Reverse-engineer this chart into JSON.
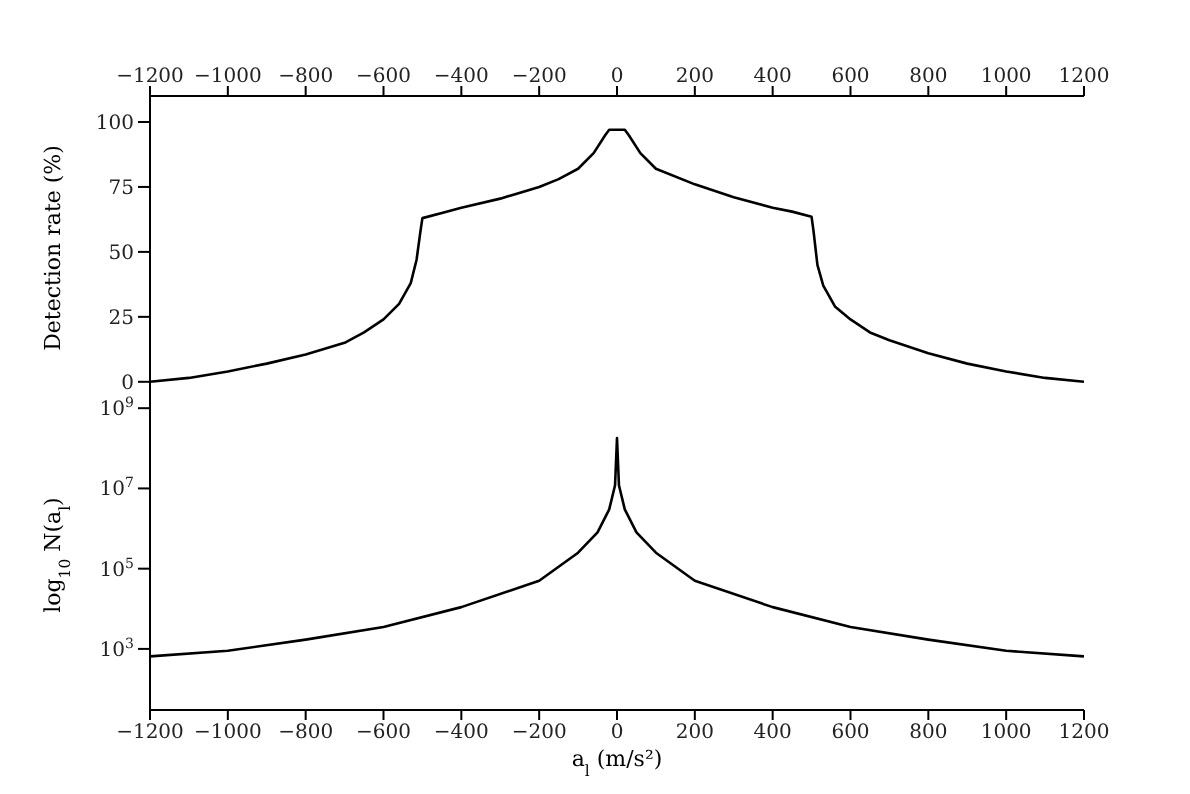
{
  "chart_data": [
    {
      "type": "line",
      "ylabel": "Detection rate (%)",
      "tick_labels": "y",
      "xlim": [
        -1200,
        1200
      ],
      "xticks": [
        -1200,
        -1000,
        -800,
        -600,
        -400,
        -200,
        0,
        200,
        400,
        600,
        800,
        1000,
        1200
      ],
      "x2lim": [
        -1200,
        1200
      ],
      "x2ticks": [
        -1200,
        -1000,
        -800,
        -600,
        -400,
        -200,
        0,
        200,
        400,
        600,
        800,
        1000,
        1200
      ],
      "ylim": [
        -7,
        110
      ],
      "yticks": [
        0,
        25,
        50,
        75,
        100
      ],
      "marker": "none",
      "line_style": "solid",
      "x": [
        -1200,
        -1100,
        -1000,
        -900,
        -800,
        -700,
        -650,
        -600,
        -560,
        -530,
        -515,
        -505,
        -500,
        -450,
        -400,
        -300,
        -200,
        -150,
        -100,
        -60,
        -30,
        -20,
        0,
        20,
        30,
        60,
        100,
        200,
        300,
        400,
        450,
        500,
        505,
        515,
        530,
        560,
        600,
        650,
        700,
        800,
        900,
        1000,
        1100,
        1200
      ],
      "series": [
        {
          "color": "#000000",
          "values": [
            0,
            1.5,
            4,
            7,
            10.5,
            15,
            19,
            24,
            30,
            38,
            47,
            58,
            63,
            65,
            67,
            70.5,
            75,
            78,
            82,
            88,
            95,
            97,
            97,
            97,
            95,
            88,
            82,
            76,
            71,
            67,
            65.5,
            63.5,
            58,
            45,
            37,
            29,
            24,
            19,
            16,
            11,
            7,
            4,
            1.5,
            0
          ]
        }
      ]
    },
    {
      "type": "line",
      "ylabel": "log$_{10}$ N(a$_{l}$)",
      "xlabel": "a$_{l}$ (m/s²)",
      "log": "y",
      "xlim": [
        -1200,
        1200
      ],
      "xticks": [
        -1200,
        -1000,
        -800,
        -600,
        -400,
        -200,
        0,
        200,
        400,
        600,
        800,
        1000,
        1200
      ],
      "ylim": [
        30,
        1600000000
      ],
      "yticks": [
        {
          "value": 1000,
          "label": "10$^{3}$"
        },
        {
          "value": 100000,
          "label": "10$^{5}$"
        },
        {
          "value": 10000000,
          "label": "10$^{7}$"
        },
        {
          "value": 1000000000,
          "label": "10$^{9}$"
        }
      ],
      "marker": "none",
      "line_style": "solid",
      "x": [
        -1200,
        -1000,
        -800,
        -600,
        -400,
        -200,
        -100,
        -50,
        -20,
        -5,
        0,
        5,
        20,
        50,
        100,
        200,
        400,
        600,
        800,
        1000,
        1200
      ],
      "series": [
        {
          "color": "#000000",
          "values": [
            650,
            900,
            1700,
            3500,
            11000,
            50000,
            250000,
            800000,
            3000000,
            12000000,
            180000000,
            12000000,
            3000000,
            800000,
            250000,
            50000,
            11000,
            3500,
            1700,
            900,
            650
          ]
        }
      ]
    }
  ]
}
